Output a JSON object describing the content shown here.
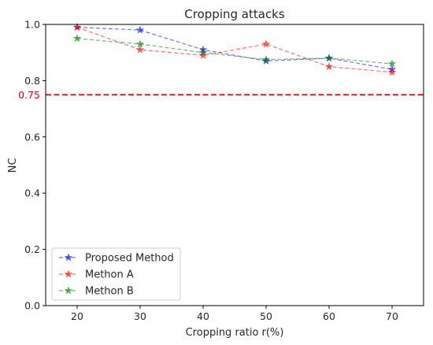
{
  "chart_data": {
    "type": "line",
    "title": "Cropping attacks",
    "xlabel": "Cropping ratio r(%)",
    "ylabel": "NC",
    "x": [
      20,
      30,
      40,
      50,
      60,
      70
    ],
    "xticks": [
      "20",
      "30",
      "40",
      "50",
      "60",
      "70"
    ],
    "yticks": [
      "0.0",
      "0.2",
      "0.4",
      "0.6",
      "0.8",
      "1.0"
    ],
    "xlim": [
      15,
      75
    ],
    "ylim": [
      0.0,
      1.0
    ],
    "grid": false,
    "legend_position": "lower-left",
    "series": [
      {
        "name": "Proposed Method",
        "color": "#0000ff",
        "marker": "star",
        "linestyle": "dashed",
        "values": [
          0.99,
          0.98,
          0.91,
          0.87,
          0.88,
          0.84
        ]
      },
      {
        "name": "Methon A",
        "color": "#ff0000",
        "marker": "star",
        "linestyle": "dashed",
        "values": [
          0.99,
          0.91,
          0.89,
          0.93,
          0.85,
          0.83
        ]
      },
      {
        "name": "Methon B",
        "color": "#008000",
        "marker": "star",
        "linestyle": "dashed",
        "values": [
          0.95,
          0.93,
          0.9,
          0.875,
          0.88,
          0.86
        ]
      }
    ],
    "reference_line": {
      "value": 0.75,
      "label": "0.75",
      "color": "#e8000b",
      "orientation": "horizontal"
    }
  }
}
